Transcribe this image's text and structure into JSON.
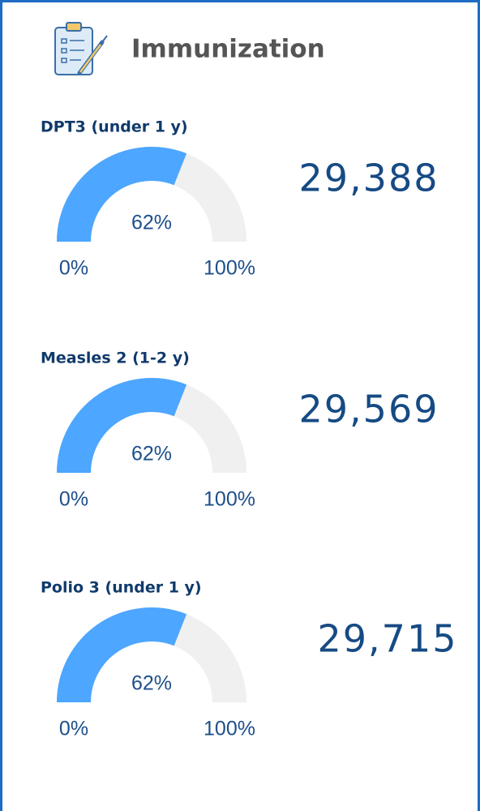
{
  "header": {
    "title": "Immunization"
  },
  "chart_data": [
    {
      "type": "gauge",
      "title": "DPT3 (under 1 y)",
      "values": [
        62
      ],
      "value_labels": [
        "62%"
      ],
      "ylim": [
        0,
        100
      ],
      "yticks": [
        {
          "value": 0,
          "label": "0%"
        },
        {
          "value": 100,
          "label": "100%"
        }
      ],
      "kpi": "29,388",
      "color": "#4da6ff",
      "track_color": "#f0f0f0"
    },
    {
      "type": "gauge",
      "title": "Measles 2 (1-2 y)",
      "values": [
        62
      ],
      "value_labels": [
        "62%"
      ],
      "ylim": [
        0,
        100
      ],
      "yticks": [
        {
          "value": 0,
          "label": "0%"
        },
        {
          "value": 100,
          "label": "100%"
        }
      ],
      "kpi": "29,569",
      "color": "#4da6ff",
      "track_color": "#f0f0f0"
    },
    {
      "type": "gauge",
      "title": "Polio 3 (under 1 y)",
      "values": [
        62
      ],
      "value_labels": [
        "62%"
      ],
      "ylim": [
        0,
        100
      ],
      "yticks": [
        {
          "value": 0,
          "label": "0%"
        },
        {
          "value": 100,
          "label": "100%"
        }
      ],
      "kpi": "29,715",
      "color": "#4da6ff",
      "track_color": "#f0f0f0"
    }
  ]
}
